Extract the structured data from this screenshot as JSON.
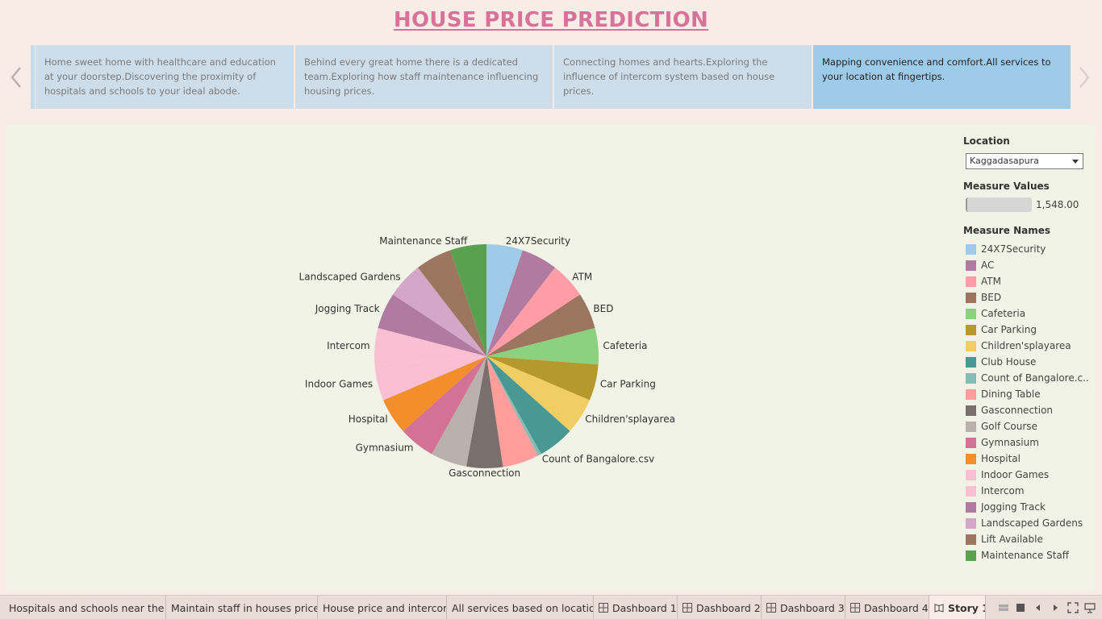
{
  "title": "HOUSE PRICE PREDICTION",
  "story_points": [
    {
      "text": " Home sweet home with healthcare and education at your doorstep.Discovering the proximity of hospitals and schools to your ideal abode."
    },
    {
      "text": "Behind every great home there is a dedicated team.Exploring how staff maintenance influencing housing prices."
    },
    {
      "text": "Connecting homes and hearts.Exploring the influence of intercom system based on house prices."
    },
    {
      "text": "Mapping convenience and comfort.All services to your location at fingertips."
    }
  ],
  "filters": {
    "location_title": "Location",
    "location_value": "Kaggadasapura",
    "measure_values_title": "Measure Values",
    "measure_values_value": "1,548.00",
    "measure_names_title": "Measure Names"
  },
  "legend": [
    {
      "label": "24X7Security",
      "color": "#a0cbe8"
    },
    {
      "label": "AC",
      "color": "#b07aa1"
    },
    {
      "label": "ATM",
      "color": "#ff9da7"
    },
    {
      "label": "BED",
      "color": "#9c755f"
    },
    {
      "label": "Cafeteria",
      "color": "#8cd17d"
    },
    {
      "label": "Car Parking",
      "color": "#b6992d"
    },
    {
      "label": "Children'splayarea",
      "color": "#f1ce63"
    },
    {
      "label": "Club House",
      "color": "#499894"
    },
    {
      "label": "Count of Bangalore.c..",
      "color": "#86bcb6"
    },
    {
      "label": "Dining Table",
      "color": "#ff9d9a"
    },
    {
      "label": "Gasconnection",
      "color": "#79706e"
    },
    {
      "label": "Golf Course",
      "color": "#bab0ac"
    },
    {
      "label": "Gymnasium",
      "color": "#d37295"
    },
    {
      "label": "Hospital",
      "color": "#f28e2b"
    },
    {
      "label": "Indoor Games",
      "color": "#fabfd2"
    },
    {
      "label": "Intercom",
      "color": "#fabfd2"
    },
    {
      "label": "Jogging Track",
      "color": "#b07aa1"
    },
    {
      "label": "Landscaped Gardens",
      "color": "#d4a6c8"
    },
    {
      "label": "Lift Available",
      "color": "#9d7660"
    },
    {
      "label": "Maintenance Staff",
      "color": "#59a14f"
    }
  ],
  "chart_data": {
    "type": "pie",
    "slices": [
      {
        "name": "24X7Security",
        "value": 5.0,
        "label": "24X7Security",
        "color": "#a0cbe8"
      },
      {
        "name": "AC",
        "value": 5.0,
        "label": "",
        "color": "#b07aa1"
      },
      {
        "name": "ATM",
        "value": 5.0,
        "label": "ATM",
        "color": "#ff9da7"
      },
      {
        "name": "BED",
        "value": 5.0,
        "label": "BED",
        "color": "#9c755f"
      },
      {
        "name": "Cafeteria",
        "value": 5.0,
        "label": "Cafeteria",
        "color": "#8cd17d"
      },
      {
        "name": "Car Parking",
        "value": 5.0,
        "label": "Car Parking",
        "color": "#b6992d"
      },
      {
        "name": "Children'splayarea",
        "value": 5.0,
        "label": "Children'splayarea",
        "color": "#f1ce63"
      },
      {
        "name": "Club House",
        "value": 5.0,
        "label": "",
        "color": "#499894"
      },
      {
        "name": "Count of Bangalore.csv",
        "value": 0.5,
        "label": "Count of Bangalore.csv",
        "color": "#86bcb6"
      },
      {
        "name": "Dining Table",
        "value": 5.0,
        "label": "",
        "color": "#ff9d9a"
      },
      {
        "name": "Gasconnection",
        "value": 5.0,
        "label": "Gasconnection",
        "color": "#79706e"
      },
      {
        "name": "Golf Course",
        "value": 5.0,
        "label": "",
        "color": "#bab0ac"
      },
      {
        "name": "Gymnasium",
        "value": 5.0,
        "label": "Gymnasium",
        "color": "#d37295"
      },
      {
        "name": "Hospital",
        "value": 5.0,
        "label": "Hospital",
        "color": "#f28e2b"
      },
      {
        "name": "Indoor Games",
        "value": 5.0,
        "label": "Indoor Games",
        "color": "#fabfd2"
      },
      {
        "name": "Intercom",
        "value": 5.0,
        "label": "Intercom",
        "color": "#fabfd2"
      },
      {
        "name": "Jogging Track",
        "value": 5.0,
        "label": "Jogging Track",
        "color": "#b07aa1"
      },
      {
        "name": "Landscaped Gardens",
        "value": 5.0,
        "label": "Landscaped Gardens",
        "color": "#d4a6c8"
      },
      {
        "name": "Lift Available",
        "value": 5.0,
        "label": "",
        "color": "#9d7660"
      },
      {
        "name": "Maintenance Staff",
        "value": 5.0,
        "label": "Maintenance Staff",
        "color": "#59a14f"
      }
    ]
  },
  "tabs": [
    {
      "label": "Hospitals and schools near the h...",
      "icon": ""
    },
    {
      "label": "Maintain staff in houses prices",
      "icon": ""
    },
    {
      "label": "House price and intercom",
      "icon": ""
    },
    {
      "label": "All services based on location",
      "icon": ""
    },
    {
      "label": "Dashboard 1",
      "icon": "dashboard-icon"
    },
    {
      "label": "Dashboard 2",
      "icon": "dashboard-icon"
    },
    {
      "label": "Dashboard 3",
      "icon": "dashboard-icon"
    },
    {
      "label": "Dashboard 4",
      "icon": "dashboard-icon"
    },
    {
      "label": "Story 1",
      "icon": "story-icon"
    }
  ],
  "colors": {
    "title": "#d7739a",
    "background": "#f8ece6",
    "dashboard_bg": "#f0f3e6",
    "story_point": "#cddde9",
    "story_point_active": "#9fcbea"
  }
}
